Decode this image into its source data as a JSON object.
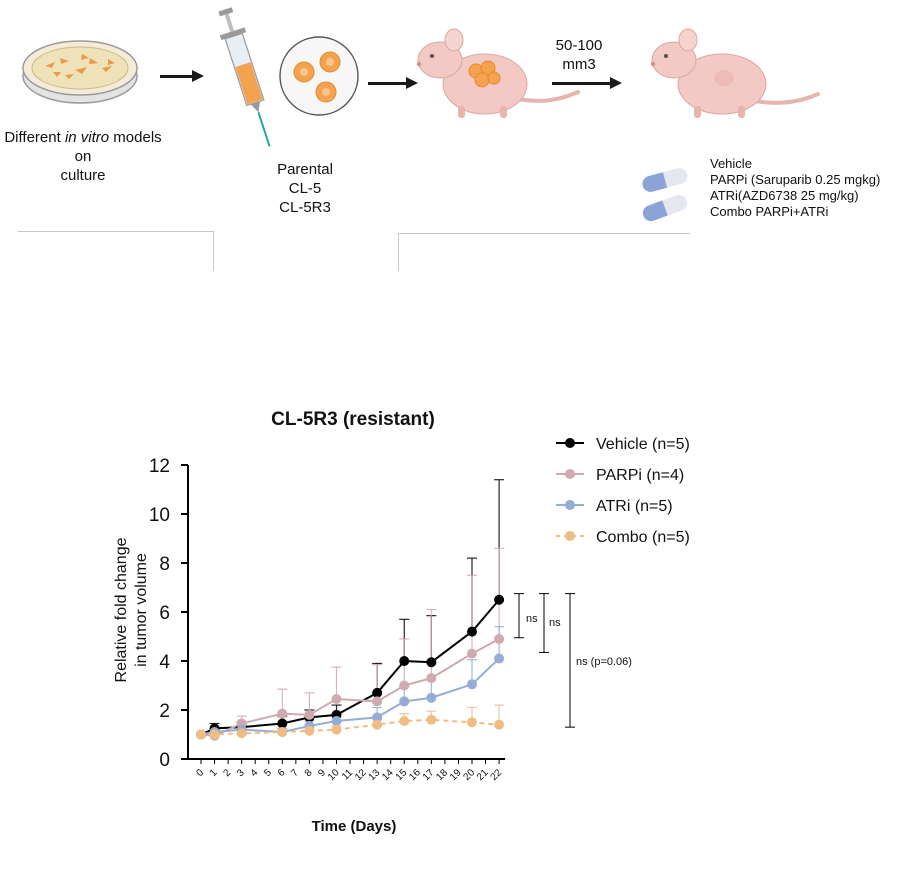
{
  "workflow": {
    "step1_caption": [
      "Different ",
      "in vitro",
      " models on",
      "culture"
    ],
    "step2_caption": [
      "Parental",
      "CL-5",
      "CL-5R3"
    ],
    "step3_label": [
      "50-100",
      "mm3"
    ],
    "treatments": [
      "Vehicle",
      "PARPi  (Saruparib 0.25 mgkg)",
      "ATRi(AZD6738  25 mg/kg)",
      "Combo PARPi+ATRi"
    ]
  },
  "colors": {
    "vehicle": "#000000",
    "parpi": "#cfaab0",
    "atri": "#94acd6",
    "combo": "#efbd84",
    "mouse": "#f2c9c4",
    "cell": "#f3a24f"
  },
  "chart_data": {
    "type": "line",
    "title": "CL-5R3 (resistant)",
    "xlabel": "Time (Days)",
    "ylabel": [
      "Relative fold change",
      "in tumor volume"
    ],
    "ylim": [
      0,
      12
    ],
    "yticks": [
      0,
      2,
      4,
      6,
      8,
      10,
      12
    ],
    "xticks": [
      0,
      1,
      2,
      3,
      4,
      5,
      6,
      7,
      8,
      9,
      10,
      11,
      12,
      13,
      14,
      15,
      16,
      17,
      18,
      19,
      20,
      21,
      22
    ],
    "legend_position": "top-right",
    "series": [
      {
        "name": "Vehicle (n=5)",
        "key": "vehicle",
        "dashed": false,
        "x": [
          0,
          1,
          3,
          6,
          8,
          10,
          13,
          15,
          17,
          20,
          22
        ],
        "y": [
          1.0,
          1.25,
          1.3,
          1.45,
          1.7,
          1.8,
          2.7,
          4.0,
          3.95,
          5.2,
          6.5
        ],
        "err": [
          0.0,
          0.2,
          0.2,
          0.3,
          0.3,
          0.4,
          1.2,
          1.7,
          1.9,
          3.0,
          4.9
        ]
      },
      {
        "name": "PARPi (n=4)",
        "key": "parpi",
        "dashed": false,
        "x": [
          0,
          1,
          3,
          6,
          8,
          10,
          13,
          15,
          17,
          20,
          22
        ],
        "y": [
          1.0,
          0.95,
          1.45,
          1.85,
          1.8,
          2.45,
          2.35,
          3.0,
          3.3,
          4.3,
          4.9
        ],
        "err": [
          0.0,
          0.15,
          0.3,
          1.0,
          0.9,
          1.3,
          1.5,
          1.9,
          2.8,
          3.2,
          3.7
        ]
      },
      {
        "name": "ATRi (n=5)",
        "key": "atri",
        "dashed": false,
        "x": [
          0,
          1,
          3,
          6,
          8,
          10,
          13,
          15,
          17,
          20,
          22
        ],
        "y": [
          1.0,
          1.1,
          1.2,
          1.1,
          1.35,
          1.55,
          1.7,
          2.35,
          2.5,
          3.05,
          4.1
        ],
        "err": [
          0.0,
          0.15,
          0.15,
          0.15,
          0.2,
          0.3,
          0.4,
          0.6,
          0.8,
          1.0,
          1.3
        ]
      },
      {
        "name": "Combo (n=5)",
        "key": "combo",
        "dashed": true,
        "x": [
          0,
          1,
          3,
          6,
          8,
          10,
          13,
          15,
          17,
          20,
          22
        ],
        "y": [
          1.0,
          1.0,
          1.05,
          1.1,
          1.15,
          1.2,
          1.4,
          1.55,
          1.6,
          1.5,
          1.4
        ],
        "err": [
          0.0,
          0.1,
          0.1,
          0.1,
          0.1,
          0.15,
          0.2,
          0.3,
          0.35,
          0.6,
          0.8
        ]
      }
    ],
    "annotations": [
      "ns",
      "ns",
      "ns (p=0.06)"
    ]
  }
}
